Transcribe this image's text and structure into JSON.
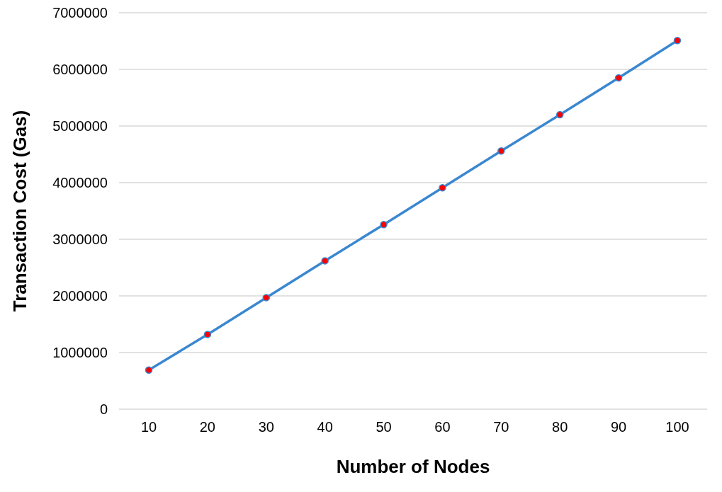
{
  "chart_data": {
    "type": "line",
    "xlabel": "Number of Nodes",
    "ylabel": "Transaction Cost (Gas)",
    "categories": [
      "10",
      "20",
      "30",
      "40",
      "50",
      "60",
      "70",
      "80",
      "90",
      "100"
    ],
    "series": [
      {
        "color": "#3a87d0",
        "colors": [
          "#ff0000",
          "#ff0000",
          "#ff0000",
          "#ff0000",
          "#ff0000",
          "#ff0000",
          "#ff0000",
          "#ff0000",
          "#ff0000",
          "#ff0000"
        ],
        "values": [
          690000,
          1320000,
          1970000,
          2620000,
          3260000,
          3910000,
          4560000,
          5200000,
          5850000,
          6510000
        ]
      }
    ],
    "ylim": [
      0,
      7000000
    ],
    "yticks": [
      0,
      1000000,
      2000000,
      3000000,
      4000000,
      5000000,
      6000000,
      7000000
    ],
    "grid": "y",
    "marker": "circle",
    "line_style": "solid"
  }
}
